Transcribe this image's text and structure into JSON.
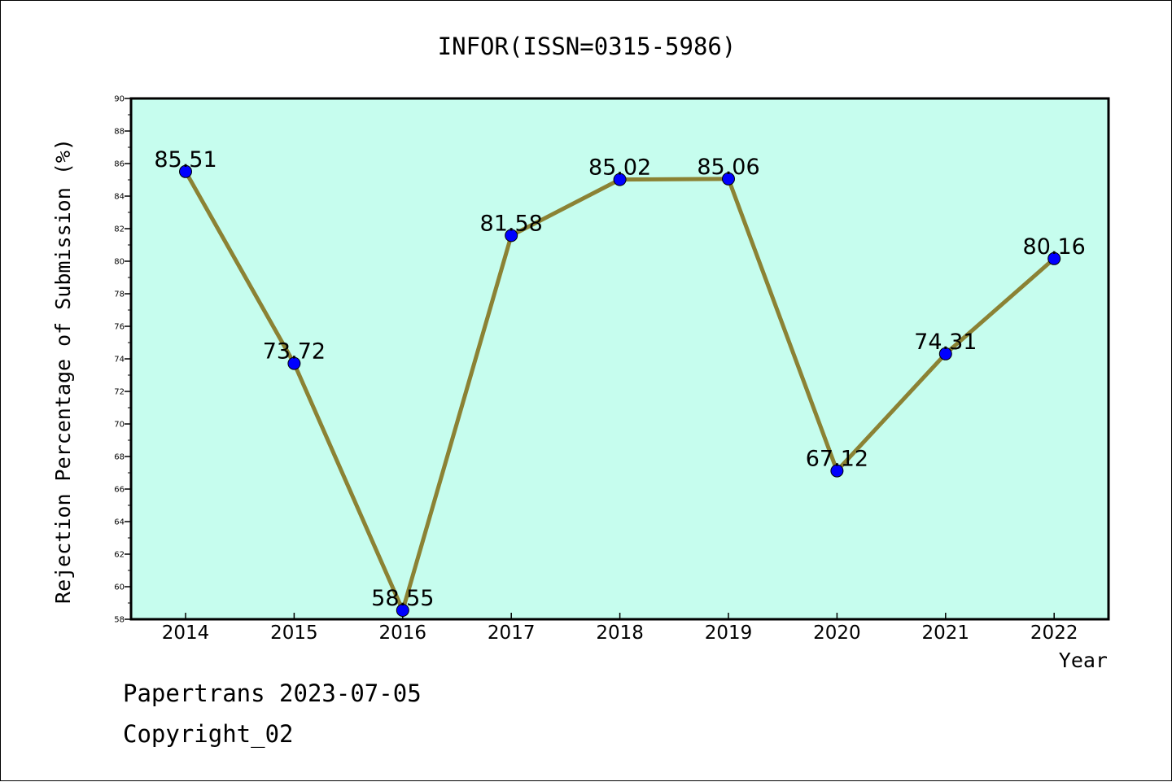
{
  "chart_data": {
    "type": "line",
    "title": "INFOR(ISSN=0315-5986)",
    "xlabel": "Year",
    "ylabel": "Rejection Percentage of Submission (%)",
    "x": [
      "2014",
      "2015",
      "2016",
      "2017",
      "2018",
      "2019",
      "2020",
      "2021",
      "2022"
    ],
    "values": [
      85.51,
      73.72,
      58.55,
      81.58,
      85.02,
      85.06,
      67.12,
      74.31,
      80.16
    ],
    "data_labels": [
      "85.51",
      "73.72",
      "58.55",
      "81.58",
      "85.02",
      "85.06",
      "67.12",
      "74.31",
      "80.16"
    ],
    "ylim": [
      58,
      90
    ],
    "yticks": [
      "58",
      "60",
      "62",
      "64",
      "66",
      "68",
      "70",
      "72",
      "74",
      "76",
      "78",
      "80",
      "82",
      "84",
      "86",
      "88",
      "90"
    ],
    "grid": false,
    "legend": "none",
    "colors": {
      "plot_background": "#c6fdee",
      "line": "#8b8234",
      "marker": "#0000ff"
    }
  },
  "footer": {
    "line1": "Papertrans 2023-07-05",
    "line2": "Copyright_02"
  }
}
